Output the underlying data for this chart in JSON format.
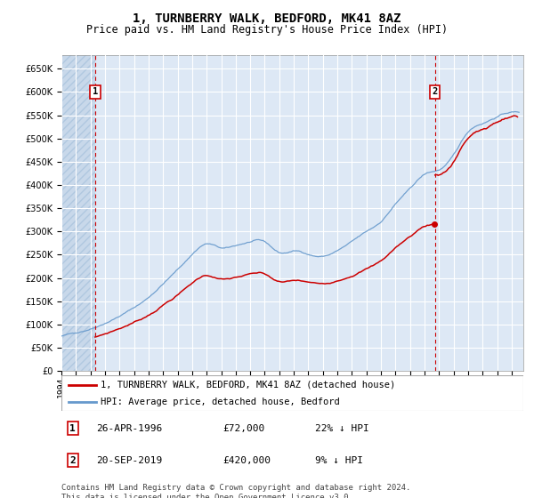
{
  "title": "1, TURNBERRY WALK, BEDFORD, MK41 8AZ",
  "subtitle": "Price paid vs. HM Land Registry's House Price Index (HPI)",
  "ylabel_ticks": [
    0,
    50000,
    100000,
    150000,
    200000,
    250000,
    300000,
    350000,
    400000,
    450000,
    500000,
    550000,
    600000,
    650000
  ],
  "ylim": [
    0,
    680000
  ],
  "xlim_start": 1994.0,
  "xlim_end": 2025.8,
  "transaction1_date": 1996.32,
  "transaction1_price": 72000,
  "transaction2_date": 2019.72,
  "transaction2_price": 420000,
  "legend_line1": "1, TURNBERRY WALK, BEDFORD, MK41 8AZ (detached house)",
  "legend_line2": "HPI: Average price, detached house, Bedford",
  "footer": "Contains HM Land Registry data © Crown copyright and database right 2024.\nThis data is licensed under the Open Government Licence v3.0.",
  "plot_bg_color": "#dde8f5",
  "hatch_bg_color": "#c8d8ea",
  "red_color": "#cc0000",
  "blue_color": "#6699cc",
  "grid_color": "#ffffff",
  "title_fontsize": 10,
  "subtitle_fontsize": 8.5,
  "tick_fontsize": 7,
  "legend_fontsize": 7.5,
  "annotation_fontsize": 8,
  "footer_fontsize": 6.5
}
